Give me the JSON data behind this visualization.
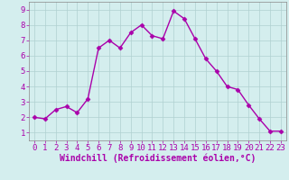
{
  "x": [
    0,
    1,
    2,
    3,
    4,
    5,
    6,
    7,
    8,
    9,
    10,
    11,
    12,
    13,
    14,
    15,
    16,
    17,
    18,
    19,
    20,
    21,
    22,
    23
  ],
  "y": [
    2.0,
    1.9,
    2.5,
    2.7,
    2.3,
    3.2,
    6.5,
    7.0,
    6.5,
    7.5,
    8.0,
    7.3,
    7.1,
    8.9,
    8.4,
    7.1,
    5.8,
    5.0,
    4.0,
    3.8,
    2.8,
    1.9,
    1.1,
    1.1
  ],
  "line_color": "#aa00aa",
  "marker": "D",
  "marker_size": 2.5,
  "bg_color": "#d4eeee",
  "grid_color": "#b0d0d0",
  "xlabel": "Windchill (Refroidissement éolien,°C)",
  "xlim": [
    -0.5,
    23.5
  ],
  "ylim": [
    0.5,
    9.5
  ],
  "yticks": [
    1,
    2,
    3,
    4,
    5,
    6,
    7,
    8,
    9
  ],
  "xticks": [
    0,
    1,
    2,
    3,
    4,
    5,
    6,
    7,
    8,
    9,
    10,
    11,
    12,
    13,
    14,
    15,
    16,
    17,
    18,
    19,
    20,
    21,
    22,
    23
  ],
  "tick_label_size": 6.5,
  "xlabel_size": 7.0,
  "spine_color": "#888888",
  "line_width": 1.0
}
